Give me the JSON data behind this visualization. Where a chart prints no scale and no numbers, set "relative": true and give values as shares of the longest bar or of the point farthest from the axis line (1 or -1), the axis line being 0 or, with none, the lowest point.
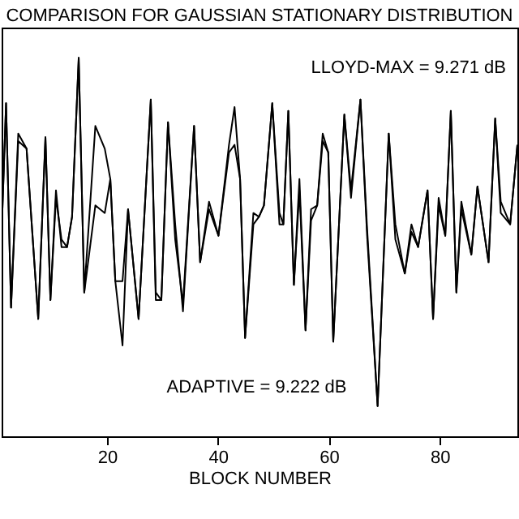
{
  "chart_data": {
    "type": "line",
    "title": "COMPARISON FOR GAUSSIAN STATIONARY DISTRIBUTION",
    "xlabel": "BLOCK NUMBER",
    "relative": true,
    "x": [
      1.1,
      1.8,
      2.7,
      4.0,
      5.5,
      7.6,
      8.9,
      9.8,
      10.8,
      11.8,
      12.8,
      13.7,
      14.9,
      15.9,
      17.9,
      19.6,
      20.6,
      21.5,
      22.8,
      23.8,
      25.7,
      27.9,
      28.8,
      29.8,
      31.0,
      32.3,
      33.7,
      35.7,
      36.8,
      38.4,
      40.1,
      42.0,
      43.0,
      44.0,
      44.9,
      46.4,
      47.4,
      48.3,
      49.8,
      51.1,
      51.8,
      52.7,
      53.7,
      54.7,
      55.8,
      56.8,
      57.9,
      58.9,
      59.9,
      60.8,
      62.8,
      64.0,
      65.7,
      66.9,
      68.8,
      70.8,
      72.0,
      73.7,
      74.9,
      76.1,
      77.8,
      78.8,
      79.8,
      81.0,
      82.0,
      83.0,
      83.9,
      85.7,
      86.8,
      88.8,
      90.0,
      91.0,
      92.7,
      94.0
    ],
    "series": [
      {
        "color": "#000000",
        "values": [
          0.58,
          0.88,
          0.34,
          0.8,
          0.76,
          0.31,
          0.79,
          0.36,
          0.65,
          0.5,
          0.5,
          0.58,
          1.0,
          0.38,
          0.82,
          0.76,
          0.68,
          0.41,
          0.41,
          0.6,
          0.31,
          0.89,
          0.38,
          0.36,
          0.83,
          0.52,
          0.35,
          0.82,
          0.46,
          0.62,
          0.53,
          0.77,
          0.87,
          0.68,
          0.26,
          0.59,
          0.58,
          0.61,
          0.88,
          0.59,
          0.56,
          0.86,
          0.4,
          0.68,
          0.28,
          0.6,
          0.61,
          0.8,
          0.75,
          0.25,
          0.85,
          0.65,
          0.89,
          0.55,
          0.08,
          0.8,
          0.56,
          0.43,
          0.56,
          0.5,
          0.65,
          0.31,
          0.63,
          0.53,
          0.86,
          0.38,
          0.62,
          0.48,
          0.66,
          0.46,
          0.84,
          0.62,
          0.56,
          0.77
        ]
      },
      {
        "color": "#000000",
        "values": [
          0.58,
          0.88,
          0.34,
          0.78,
          0.76,
          0.31,
          0.79,
          0.36,
          0.63,
          0.52,
          0.5,
          0.58,
          1.0,
          0.38,
          0.61,
          0.59,
          0.68,
          0.41,
          0.24,
          0.6,
          0.31,
          0.89,
          0.36,
          0.36,
          0.83,
          0.56,
          0.33,
          0.82,
          0.46,
          0.6,
          0.53,
          0.75,
          0.77,
          0.68,
          0.26,
          0.56,
          0.58,
          0.61,
          0.88,
          0.56,
          0.56,
          0.86,
          0.4,
          0.65,
          0.28,
          0.57,
          0.61,
          0.78,
          0.75,
          0.25,
          0.85,
          0.63,
          0.89,
          0.53,
          0.08,
          0.8,
          0.52,
          0.43,
          0.54,
          0.5,
          0.65,
          0.31,
          0.61,
          0.53,
          0.86,
          0.38,
          0.6,
          0.48,
          0.66,
          0.46,
          0.84,
          0.59,
          0.56,
          0.77
        ]
      }
    ],
    "xlim": [
      1,
      94
    ],
    "xticks": [
      20,
      40,
      60,
      80
    ],
    "annotations": [
      "LLOYD-MAX = 9.271 dB",
      "ADAPTIVE = 9.222 dB"
    ]
  }
}
